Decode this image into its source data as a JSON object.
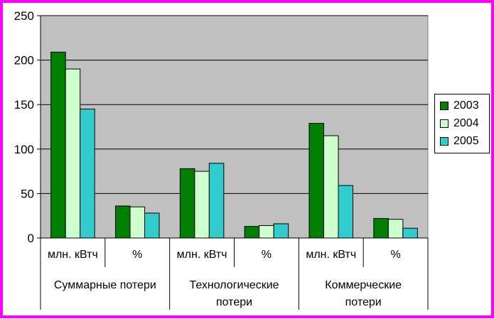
{
  "chart_data": {
    "type": "bar",
    "title": "",
    "xlabel": "",
    "ylabel": "",
    "ylim": [
      0,
      250
    ],
    "y_ticks": [
      "0",
      "50",
      "100",
      "150",
      "200",
      "250"
    ],
    "grid": true,
    "legend_placement": "right",
    "categories": [
      "млн. кВтч",
      "%",
      "млн. кВтч",
      "%",
      "млн. кВтч",
      "%"
    ],
    "groups": [
      "Суммарные потери",
      "Технологические потери",
      "Коммерческие потери"
    ],
    "series": [
      {
        "name": "2003",
        "color": "#007f00",
        "values": [
          209,
          36,
          78,
          13,
          129,
          22
        ]
      },
      {
        "name": "2004",
        "color": "#ccffcc",
        "values": [
          190,
          35,
          75,
          14,
          115,
          21
        ]
      },
      {
        "name": "2005",
        "color": "#33cccc",
        "values": [
          145,
          28,
          84,
          16,
          59,
          11
        ]
      }
    ],
    "plot_background": "#c0c0c0"
  }
}
